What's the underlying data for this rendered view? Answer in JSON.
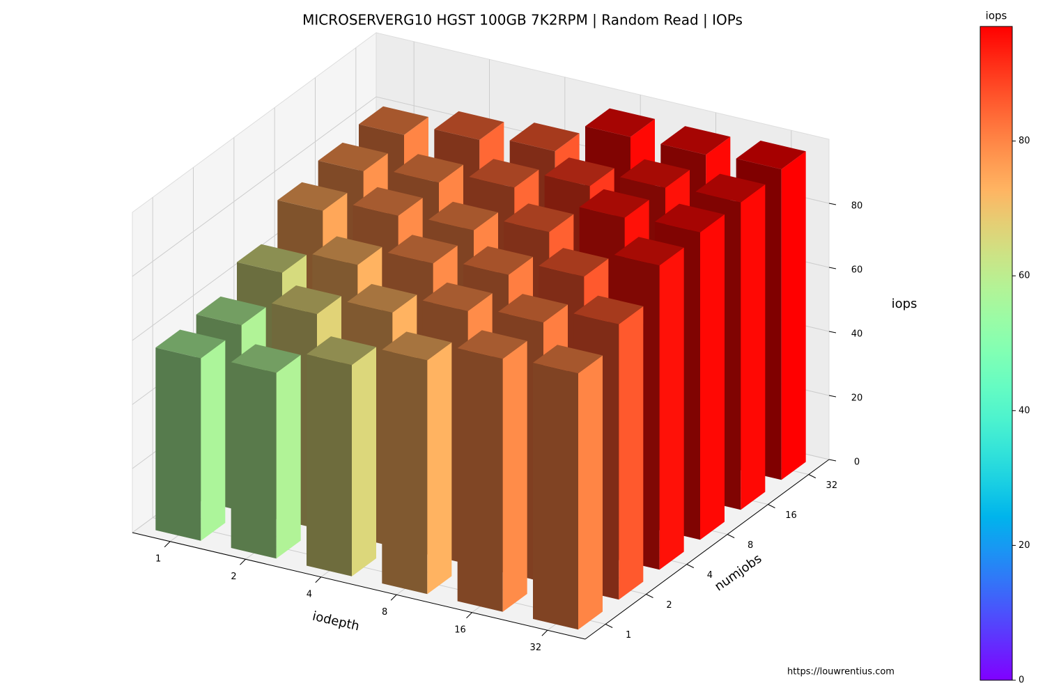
{
  "chart_data": {
    "type": "bar3d",
    "title": "MICROSERVERG10 HGST 100GB 7K2RPM | Random Read | IOPs",
    "x_label": "iodepth",
    "y_label": "numjobs",
    "z_label": "iops",
    "x_categories": [
      "1",
      "2",
      "4",
      "8",
      "16",
      "32"
    ],
    "y_categories": [
      "1",
      "2",
      "4",
      "8",
      "16",
      "32"
    ],
    "values": [
      [
        57,
        58,
        65,
        75,
        78,
        80
      ],
      [
        58,
        67,
        73,
        79,
        80,
        84
      ],
      [
        66,
        73,
        79,
        80,
        84,
        86
      ],
      [
        73,
        79,
        81,
        85,
        90,
        96
      ],
      [
        79,
        81,
        86,
        95,
        95,
        96
      ],
      [
        80,
        86,
        95,
        96,
        96,
        97
      ]
    ],
    "zlim": [
      0,
      100
    ],
    "zticks": [
      0,
      20,
      40,
      60,
      80
    ],
    "colormap": "rainbow",
    "colorbar": {
      "label": "iops",
      "clim": [
        0,
        97
      ],
      "ticks": [
        0,
        20,
        40,
        60,
        80
      ]
    },
    "footer": "https://louwrentius.com"
  }
}
